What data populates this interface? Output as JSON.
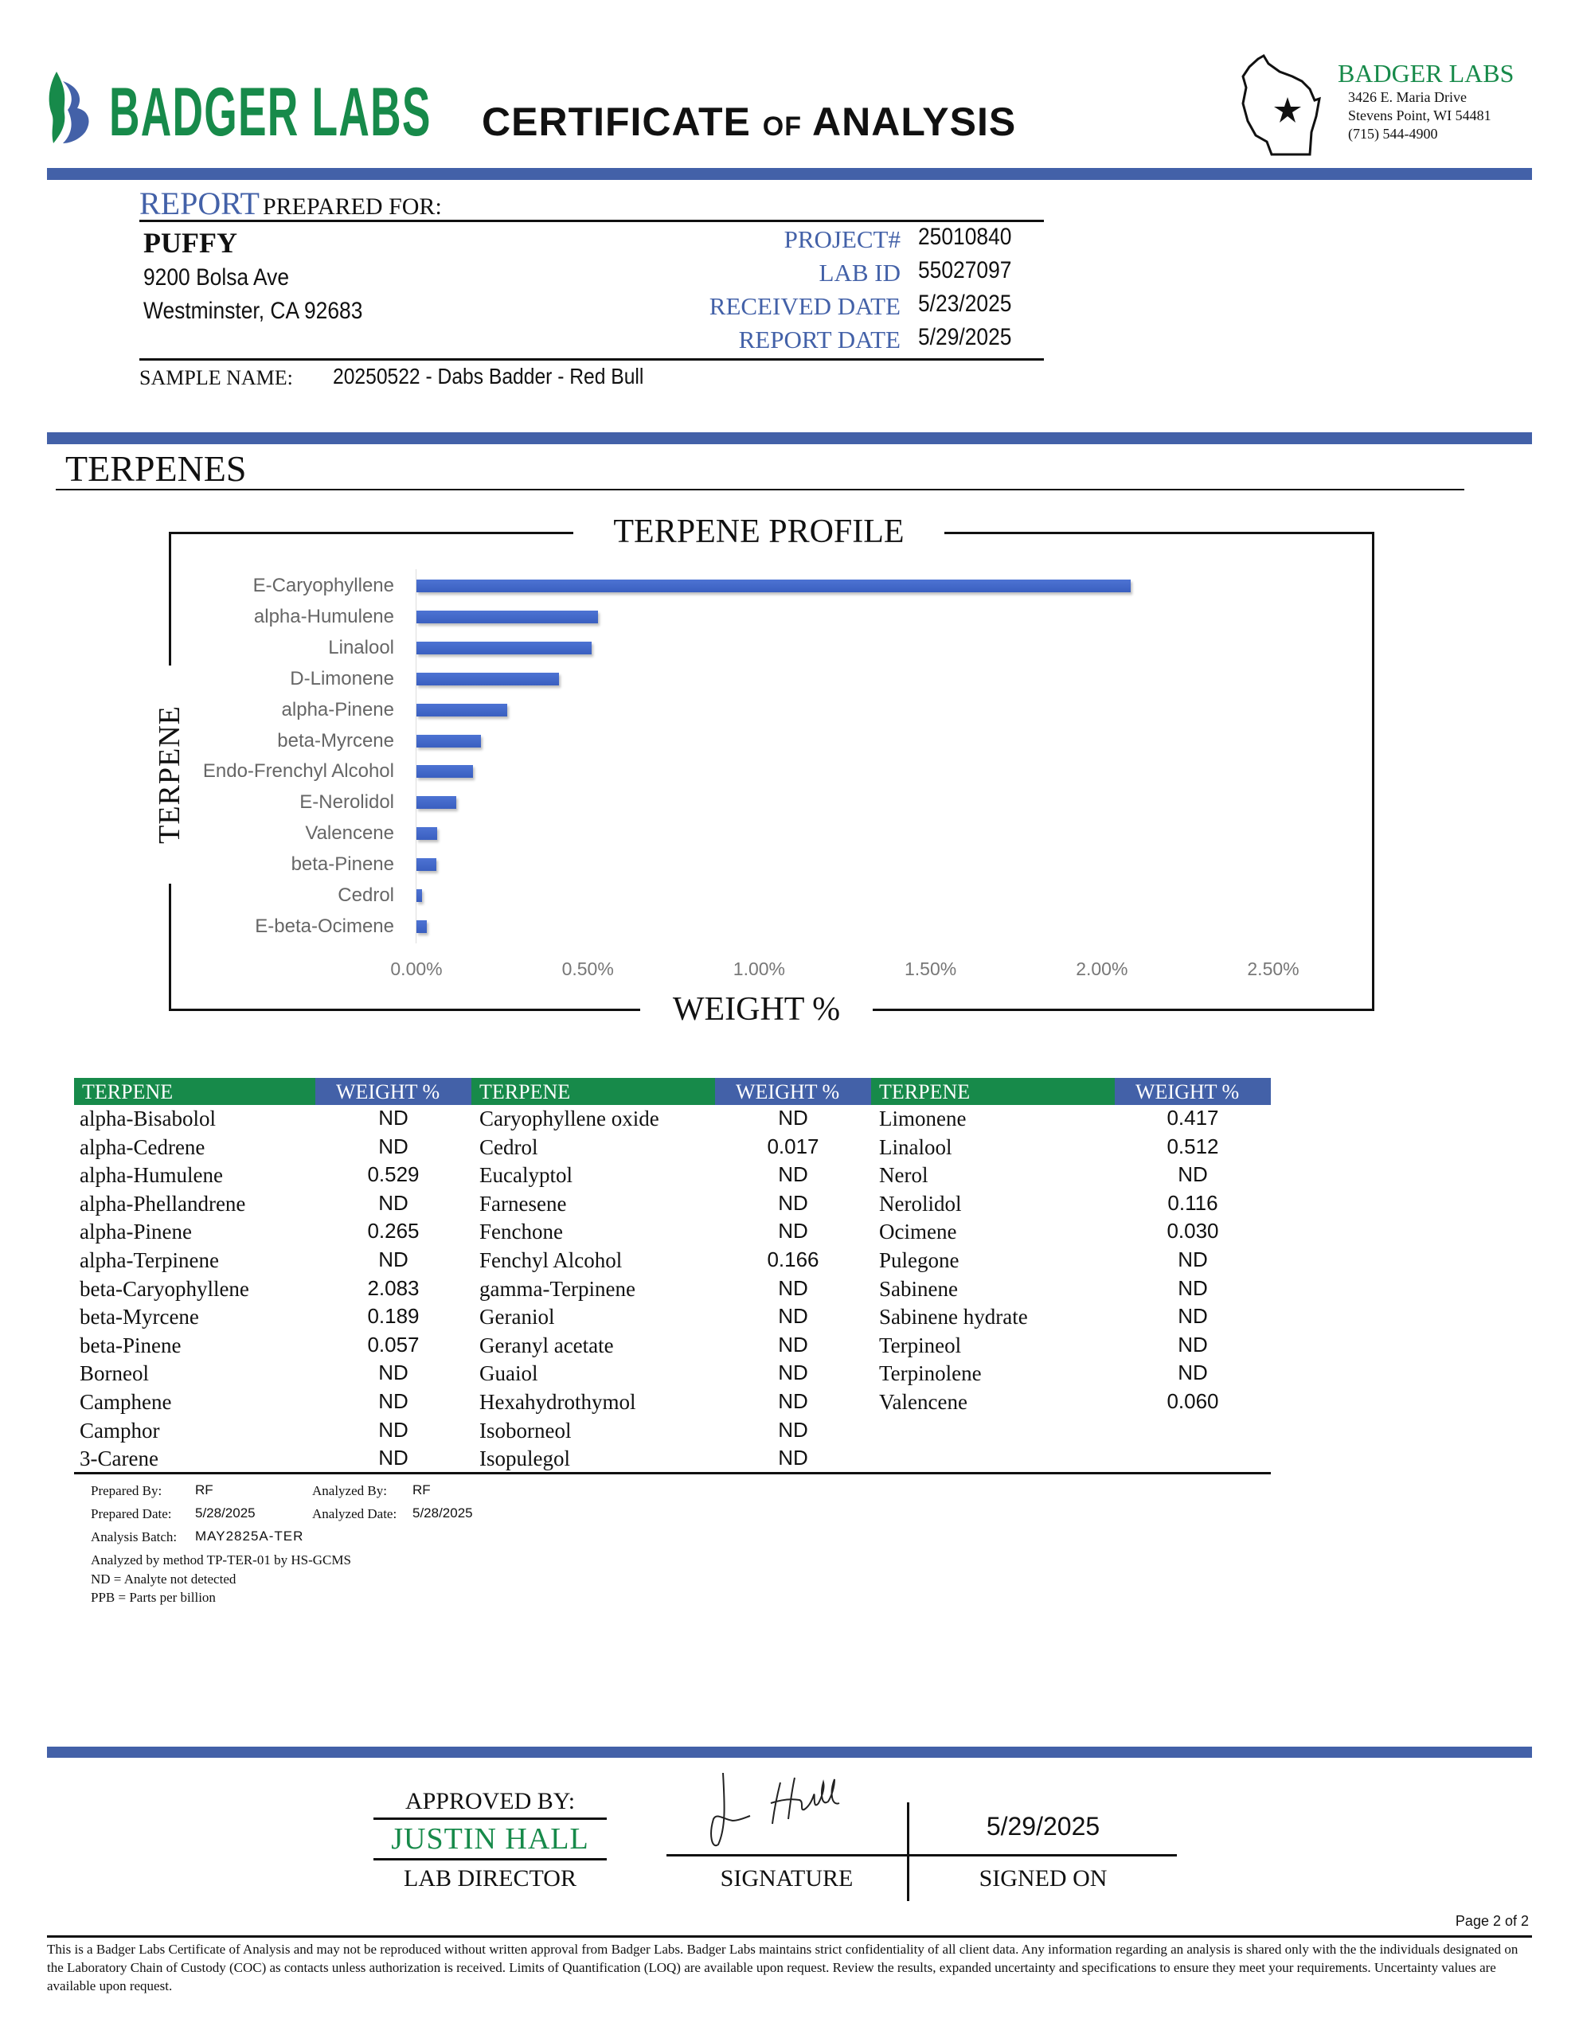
{
  "header": {
    "logo_text": "BADGER LABS",
    "title_main1": "CERTIFICATE",
    "title_of": "OF",
    "title_main2": "ANALYSIS",
    "lab_name": "BADGER LABS",
    "address1": "3426 E. Maria Drive",
    "address2": "Stevens Point, WI 54481",
    "phone": "(715) 544-4900"
  },
  "report": {
    "heading_report": "REPORT",
    "heading_rest": "PREPARED FOR:",
    "client_name": "PUFFY",
    "client_address1": "9200 Bolsa Ave",
    "client_address2": "Westminster, CA 92683",
    "fields": [
      {
        "label": "PROJECT#",
        "value": "25010840"
      },
      {
        "label": "LAB ID",
        "value": "55027097"
      },
      {
        "label": "RECEIVED DATE",
        "value": "5/23/2025"
      },
      {
        "label": "REPORT DATE",
        "value": "5/29/2025"
      }
    ],
    "sample_label": "SAMPLE NAME:",
    "sample_name": "20250522 - Dabs Badder - Red Bull"
  },
  "section_title": "TERPENES",
  "chart_data": {
    "type": "bar",
    "orientation": "horizontal",
    "title": "TERPENE PROFILE",
    "xlabel": "WEIGHT %",
    "ylabel": "TERPENE",
    "categories": [
      "E-Caryophyllene",
      "alpha-Humulene",
      "Linalool",
      "D-Limonene",
      "alpha-Pinene",
      "beta-Myrcene",
      "Endo-Frenchyl Alcohol",
      "E-Nerolidol",
      "Valencene",
      "beta-Pinene",
      "Cedrol",
      "E-beta-Ocimene"
    ],
    "values": [
      2.083,
      0.529,
      0.512,
      0.417,
      0.265,
      0.189,
      0.166,
      0.116,
      0.06,
      0.057,
      0.017,
      0.03
    ],
    "xlim": [
      0,
      2.5
    ],
    "xticks": [
      "0.00%",
      "0.50%",
      "1.00%",
      "1.50%",
      "2.00%",
      "2.50%"
    ],
    "grid": false,
    "bar_color": "#4361a8"
  },
  "table": {
    "headers": {
      "terpene": "TERPENE",
      "weight": "WEIGHT %"
    },
    "columns": [
      [
        [
          "alpha-Bisabolol",
          "ND"
        ],
        [
          "alpha-Cedrene",
          "ND"
        ],
        [
          "alpha-Humulene",
          "0.529"
        ],
        [
          "alpha-Phellandrene",
          "ND"
        ],
        [
          "alpha-Pinene",
          "0.265"
        ],
        [
          "alpha-Terpinene",
          "ND"
        ],
        [
          "beta-Caryophyllene",
          "2.083"
        ],
        [
          "beta-Myrcene",
          "0.189"
        ],
        [
          "beta-Pinene",
          "0.057"
        ],
        [
          "Borneol",
          "ND"
        ],
        [
          "Camphene",
          "ND"
        ],
        [
          "Camphor",
          "ND"
        ],
        [
          "3-Carene",
          "ND"
        ]
      ],
      [
        [
          "Caryophyllene oxide",
          "ND"
        ],
        [
          "Cedrol",
          "0.017"
        ],
        [
          "Eucalyptol",
          "ND"
        ],
        [
          "Farnesene",
          "ND"
        ],
        [
          "Fenchone",
          "ND"
        ],
        [
          "Fenchyl Alcohol",
          "0.166"
        ],
        [
          "gamma-Terpinene",
          "ND"
        ],
        [
          "Geraniol",
          "ND"
        ],
        [
          "Geranyl acetate",
          "ND"
        ],
        [
          "Guaiol",
          "ND"
        ],
        [
          "Hexahydrothymol",
          "ND"
        ],
        [
          "Isoborneol",
          "ND"
        ],
        [
          "Isopulegol",
          "ND"
        ]
      ],
      [
        [
          "Limonene",
          "0.417"
        ],
        [
          "Linalool",
          "0.512"
        ],
        [
          "Nerol",
          "ND"
        ],
        [
          "Nerolidol",
          "0.116"
        ],
        [
          "Ocimene",
          "0.030"
        ],
        [
          "Pulegone",
          "ND"
        ],
        [
          "Sabinene",
          "ND"
        ],
        [
          "Sabinene hydrate",
          "ND"
        ],
        [
          "Terpineol",
          "ND"
        ],
        [
          "Terpinolene",
          "ND"
        ],
        [
          "Valencene",
          "0.060"
        ]
      ]
    ]
  },
  "notes": {
    "prepared_by_label": "Prepared By:",
    "prepared_by": "RF",
    "analyzed_by_label": "Analyzed By:",
    "analyzed_by": "RF",
    "prepared_date_label": "Prepared Date:",
    "prepared_date": "5/28/2025",
    "analyzed_date_label": "Analyzed Date:",
    "analyzed_date": "5/28/2025",
    "batch_label": "Analysis Batch:",
    "batch": "MAY2825A-TER",
    "method": "Analyzed by method TP-TER-01 by HS-GCMS",
    "nd": "ND = Analyte not detected",
    "ppb": "PPB = Parts per billion"
  },
  "approval": {
    "approved_by_label": "APPROVED BY:",
    "approver_name": "JUSTIN HALL",
    "approver_title": "LAB DIRECTOR",
    "signature_text": "J. Hall",
    "signature_label": "SIGNATURE",
    "signed_date": "5/29/2025",
    "signed_on_label": "SIGNED ON"
  },
  "footer": {
    "page": "Page 2 of 2",
    "disclaimer": "This is a Badger Labs Certificate of Analysis and may not be reproduced without written approval from Badger Labs. Badger Labs maintains strict confidentiality of all client data. Any information regarding an analysis is shared only with the the individuals designated on the Laboratory Chain of Custody (COC) as contacts unless authorization is received. Limits of Quantification (LOQ) are available upon request. Review the results, expanded uncertainty and specifications to ensure they meet your requirements. Uncertainty values are available upon request."
  },
  "colors": {
    "blue": "#4361a8",
    "green": "#178a4a"
  }
}
